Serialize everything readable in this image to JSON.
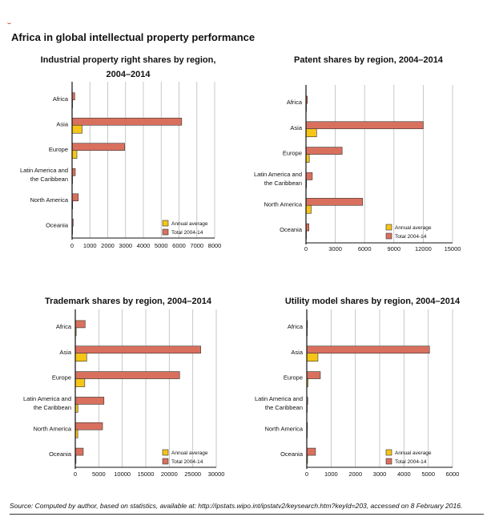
{
  "figure": {
    "title": "Africa in global intellectual property performance",
    "source": "Source: Computed by author, based on statistics, available at: http://ipstats.wipo.int/ipstatv2/keysearch.htm?keyId=203, accessed on 8 February 2016.",
    "colors": {
      "annual": "#f5c518",
      "total": "#d9705e",
      "grid": "#bbbbbb"
    }
  },
  "chart_data": [
    {
      "type": "bar",
      "title": "Industrial property right shares by region, 2004–2014",
      "title_lines": [
        "Industrial property right shares by region,",
        "2004–2014"
      ],
      "categories": [
        "Africa",
        "Asia",
        "Europe",
        "Latin America and the Caribbean",
        "North America",
        "Oceania"
      ],
      "category_lines": [
        [
          "Africa"
        ],
        [
          "Asia"
        ],
        [
          "Europe"
        ],
        [
          "Latin America and",
          "the Caribbean"
        ],
        [
          "North America"
        ],
        [
          "Oceania"
        ]
      ],
      "series": [
        {
          "name": "Total 2004-14",
          "values": [
            150,
            6150,
            2950,
            180,
            350,
            60
          ]
        },
        {
          "name": "Annual average",
          "values": [
            15,
            560,
            270,
            17,
            32,
            6
          ]
        }
      ],
      "legend": [
        "Annual average",
        "Total 2004-14"
      ],
      "xlim": [
        0,
        8000
      ],
      "xticks": [
        0,
        1000,
        2000,
        3000,
        4000,
        5000,
        6000,
        7000,
        8000
      ],
      "xlabel": "",
      "ylabel": ""
    },
    {
      "type": "bar",
      "title": "Patent shares by region, 2004–2014",
      "title_lines": [
        "Patent shares by region, 2004–2014"
      ],
      "categories": [
        "Africa",
        "Asia",
        "Europe",
        "Latin America and the Caribbean",
        "North America",
        "Oceania"
      ],
      "category_lines": [
        [
          "Africa"
        ],
        [
          "Asia"
        ],
        [
          "Europe"
        ],
        [
          "Latin America and",
          "the Caribbean"
        ],
        [
          "North America"
        ],
        [
          "Oceania"
        ]
      ],
      "series": [
        {
          "name": "Total 2004-14",
          "values": [
            150,
            12000,
            3700,
            650,
            5800,
            300
          ]
        },
        {
          "name": "Annual average",
          "values": [
            14,
            1090,
            340,
            60,
            530,
            27
          ]
        }
      ],
      "legend": [
        "Annual average",
        "Total 2004-14"
      ],
      "xlim": [
        0,
        15000
      ],
      "xticks": [
        0,
        3000,
        6000,
        9000,
        12000,
        15000
      ],
      "xlabel": "",
      "ylabel": ""
    },
    {
      "type": "bar",
      "title": "Trademark shares by region, 2004–2014",
      "title_lines": [
        "Trademark shares by region, 2004–2014"
      ],
      "categories": [
        "Africa",
        "Asia",
        "Europe",
        "Latin America and the Caribbean",
        "North America",
        "Oceania"
      ],
      "category_lines": [
        [
          "Africa"
        ],
        [
          "Asia"
        ],
        [
          "Europe"
        ],
        [
          "Latin America and",
          "the Caribbean"
        ],
        [
          "North America"
        ],
        [
          "Oceania"
        ]
      ],
      "series": [
        {
          "name": "Total 2004-14",
          "values": [
            2100,
            26700,
            22200,
            6100,
            5800,
            1700
          ]
        },
        {
          "name": "Annual average",
          "values": [
            190,
            2430,
            2020,
            550,
            530,
            150
          ]
        }
      ],
      "legend": [
        "Annual average",
        "Total 2004-14"
      ],
      "xlim": [
        0,
        30000
      ],
      "xticks": [
        0,
        5000,
        10000,
        15000,
        20000,
        25000,
        30000
      ],
      "xlabel": "",
      "ylabel": ""
    },
    {
      "type": "bar",
      "title": "Utility model shares by region, 2004–2014",
      "title_lines": [
        "Utility model shares by region, 2004–2014"
      ],
      "categories": [
        "Africa",
        "Asia",
        "Europe",
        "Latin America and the Caribbean",
        "North America",
        "Oceania"
      ],
      "category_lines": [
        [
          "Africa"
        ],
        [
          "Asia"
        ],
        [
          "Europe"
        ],
        [
          "Latin America and",
          "the Caribbean"
        ],
        [
          "North America"
        ],
        [
          "Oceania"
        ]
      ],
      "series": [
        {
          "name": "Total 2004-14",
          "values": [
            10,
            5050,
            560,
            40,
            5,
            360
          ]
        },
        {
          "name": "Annual average",
          "values": [
            1,
            460,
            50,
            4,
            0,
            33
          ]
        }
      ],
      "legend": [
        "Annual average",
        "Total 2004-14"
      ],
      "xlim": [
        0,
        6000
      ],
      "xticks": [
        0,
        1000,
        2000,
        3000,
        4000,
        5000,
        6000
      ],
      "xlabel": "",
      "ylabel": ""
    }
  ]
}
